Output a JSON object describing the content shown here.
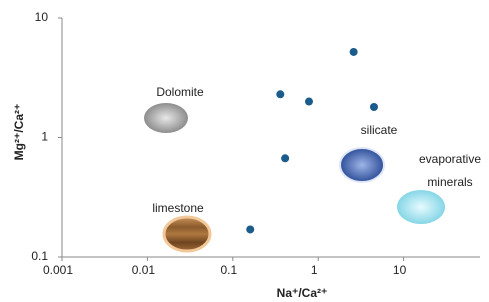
{
  "chart_data": {
    "type": "scatter",
    "x_label": "Na⁺/Ca²⁺",
    "y_label": "Mg²⁺/Ca²⁺",
    "x": [
      0.36,
      2.6,
      0.78,
      4.5,
      0.41,
      0.16
    ],
    "values": [
      2.3,
      5.2,
      2.0,
      1.8,
      0.67,
      0.17
    ],
    "color": "#1b5c8c",
    "log_x": true,
    "log_y": true,
    "xlim": [
      0.001,
      100
    ],
    "ylim": [
      0.1,
      10
    ],
    "xticks": [
      0.001,
      0.01,
      0.1,
      1,
      10
    ],
    "yticks": [
      0.1,
      1,
      10
    ],
    "annotations": [
      "Dolomite",
      "silicate",
      "evaporative",
      "minerals",
      "limestone"
    ]
  }
}
